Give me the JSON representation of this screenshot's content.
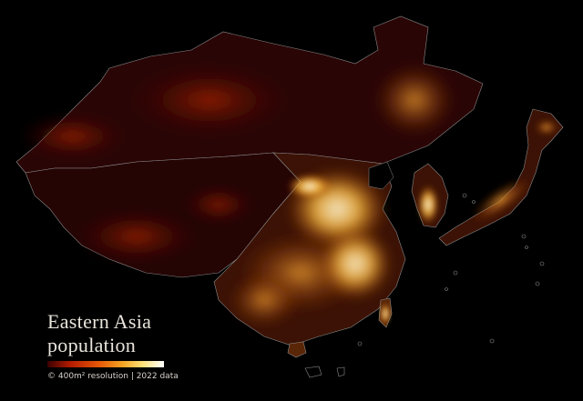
{
  "map": {
    "title_line1": "Eastern Asia",
    "title_line2": "population",
    "caption": "© 400m² resolution | 2022 data",
    "legend_colors": [
      "#3a0000",
      "#b31b00",
      "#e85a08",
      "#f5a623",
      "#ffe27a",
      "#ffffff"
    ],
    "background": "#000000",
    "border_color": "#8a8a8a"
  }
}
